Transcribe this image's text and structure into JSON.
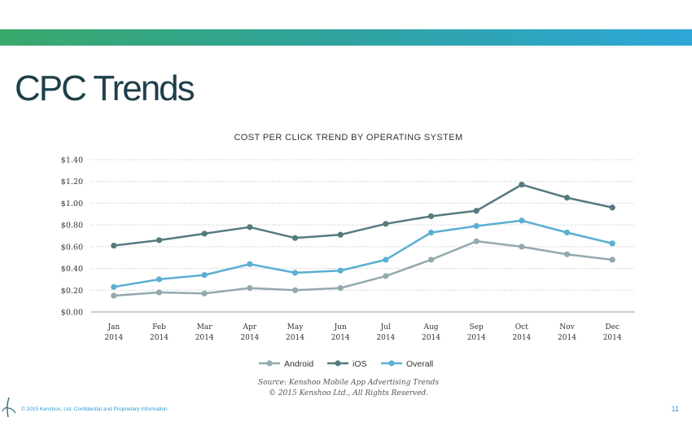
{
  "slide": {
    "title": "CPC Trends",
    "footer": "© 2015 Kenshoo, Ltd. Confidential and Proprietary Information",
    "page_number": "11"
  },
  "chart_data": {
    "type": "line",
    "title": "COST PER CLICK TREND BY OPERATING SYSTEM",
    "xlabel": "",
    "ylabel": "",
    "categories": [
      [
        "Jan",
        "2014"
      ],
      [
        "Feb",
        "2014"
      ],
      [
        "Mar",
        "2014"
      ],
      [
        "Apr",
        "2014"
      ],
      [
        "May",
        "2014"
      ],
      [
        "Jun",
        "2014"
      ],
      [
        "Jul",
        "2014"
      ],
      [
        "Aug",
        "2014"
      ],
      [
        "Sep",
        "2014"
      ],
      [
        "Oct",
        "2014"
      ],
      [
        "Nov",
        "2014"
      ],
      [
        "Dec",
        "2014"
      ]
    ],
    "ylim": [
      0,
      1.4
    ],
    "yticks": [
      0,
      0.2,
      0.4,
      0.6,
      0.8,
      1.0,
      1.2,
      1.4
    ],
    "ytick_labels": [
      "$0.00",
      "$0.20",
      "$0.40",
      "$0.60",
      "$0.80",
      "$1.00",
      "$1.20",
      "$1.40"
    ],
    "grid": "horizontal dotted",
    "legend_position": "bottom",
    "series": [
      {
        "name": "Android",
        "color": "#92a9ad",
        "values": [
          0.15,
          0.18,
          0.17,
          0.22,
          0.2,
          0.22,
          0.33,
          0.48,
          0.65,
          0.6,
          0.53,
          0.48
        ]
      },
      {
        "name": "iOS",
        "color": "#567a80",
        "values": [
          0.61,
          0.66,
          0.72,
          0.78,
          0.68,
          0.71,
          0.81,
          0.88,
          0.93,
          1.17,
          1.05,
          0.96
        ]
      },
      {
        "name": "Overall",
        "color": "#5aafd2",
        "values": [
          0.23,
          0.3,
          0.34,
          0.44,
          0.36,
          0.38,
          0.48,
          0.73,
          0.79,
          0.84,
          0.73,
          0.63
        ]
      }
    ],
    "source": [
      "Source: Kenshoo Mobile App Advertising Trends",
      "© 2015 Kenshoo Ltd., All Rights Reserved."
    ]
  }
}
